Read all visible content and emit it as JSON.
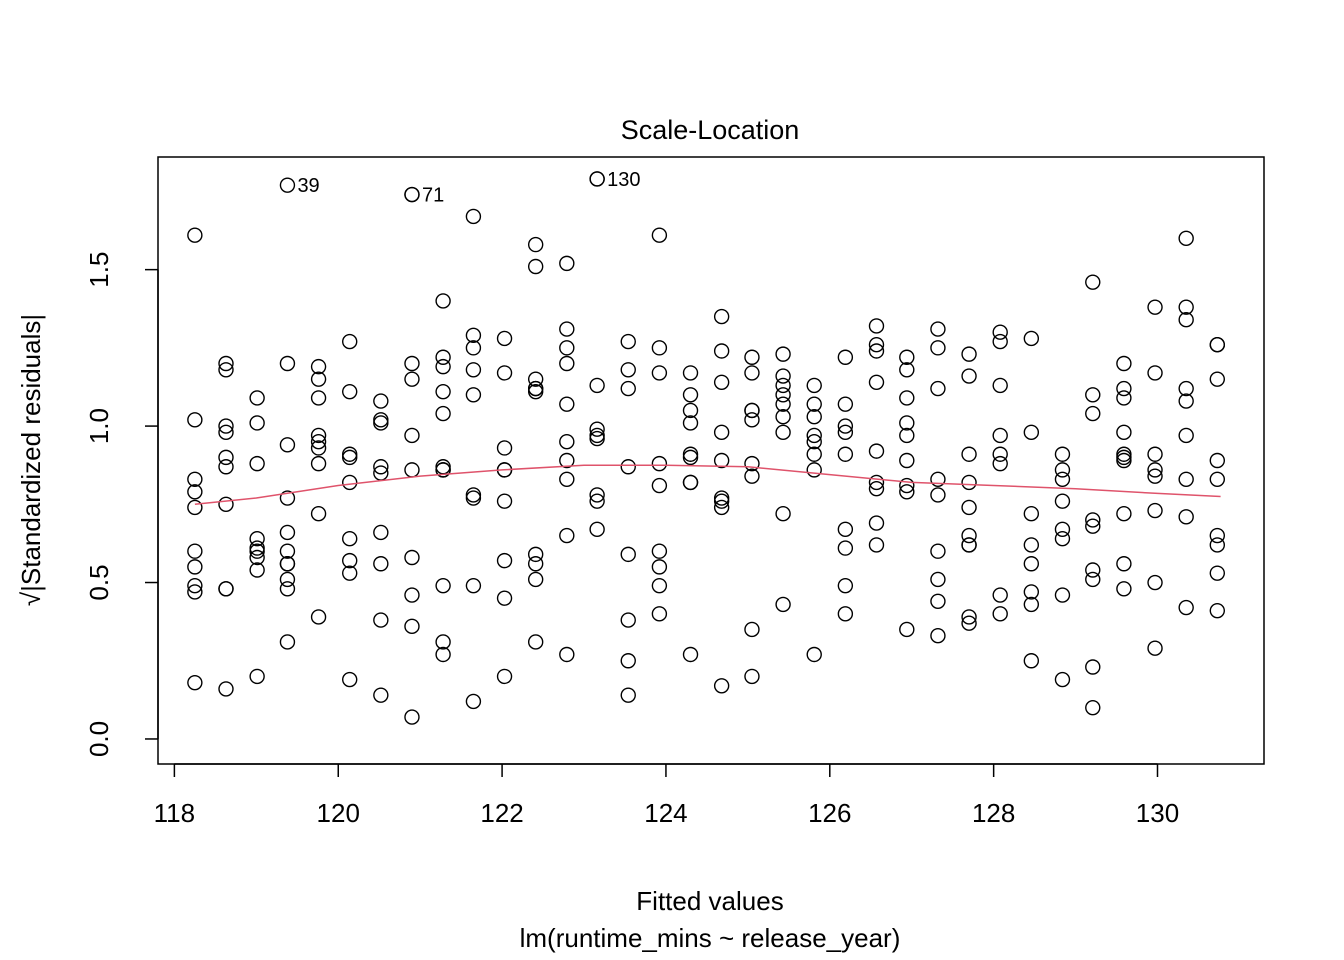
{
  "chart_data": {
    "type": "scatter",
    "title": "Scale-Location",
    "xlabel": "Fitted values",
    "sub_xlabel": "lm(runtime_mins ~ release_year)",
    "ylabel": "√|Standardized residuals|",
    "xlim": [
      117.8,
      131.3
    ],
    "ylim": [
      -0.08,
      1.86
    ],
    "xticks": [
      118,
      120,
      122,
      124,
      126,
      128,
      130
    ],
    "yticks": [
      0.0,
      0.5,
      1.0,
      1.5
    ],
    "xtick_labels": [
      "118",
      "120",
      "122",
      "124",
      "126",
      "128",
      "130"
    ],
    "ytick_labels": [
      "0.0",
      "0.5",
      "1.0",
      "1.5"
    ],
    "grid": false,
    "point_style": "open-circle",
    "smooth_color": "#DF536B",
    "annotations": [
      {
        "label": "39",
        "x": 119.38,
        "y": 1.77
      },
      {
        "label": "71",
        "x": 120.9,
        "y": 1.74
      },
      {
        "label": "130",
        "x": 123.16,
        "y": 1.79
      }
    ],
    "smooth": {
      "x": [
        118.25,
        119,
        120,
        121,
        122,
        123,
        124,
        125,
        126,
        127,
        128,
        129,
        130,
        130.77
      ],
      "y": [
        0.75,
        0.77,
        0.81,
        0.84,
        0.86,
        0.875,
        0.875,
        0.87,
        0.845,
        0.82,
        0.81,
        0.8,
        0.785,
        0.775
      ]
    },
    "points": {
      "x": [
        118.25,
        118.25,
        118.25,
        118.25,
        118.25,
        118.25,
        118.25,
        118.25,
        118.25,
        118.25,
        118.63,
        118.63,
        118.63,
        118.63,
        118.63,
        118.63,
        118.63,
        118.63,
        118.63,
        118.63,
        119.01,
        119.01,
        119.01,
        119.01,
        119.01,
        119.01,
        119.01,
        119.01,
        119.01,
        119.38,
        119.38,
        119.38,
        119.38,
        119.38,
        119.38,
        119.38,
        119.38,
        119.38,
        119.38,
        119.76,
        119.76,
        119.76,
        119.76,
        119.76,
        119.76,
        119.76,
        119.76,
        119.76,
        120.14,
        120.14,
        120.14,
        120.14,
        120.14,
        120.14,
        120.14,
        120.14,
        120.14,
        120.52,
        120.52,
        120.52,
        120.52,
        120.52,
        120.52,
        120.52,
        120.52,
        120.52,
        120.9,
        120.9,
        120.9,
        120.9,
        120.9,
        120.9,
        120.9,
        120.9,
        120.9,
        121.28,
        121.28,
        121.28,
        121.28,
        121.28,
        121.28,
        121.28,
        121.28,
        121.28,
        121.28,
        121.28,
        121.65,
        121.65,
        121.65,
        121.65,
        121.65,
        121.65,
        121.65,
        121.65,
        121.65,
        122.03,
        122.03,
        122.03,
        122.03,
        122.03,
        122.03,
        122.03,
        122.03,
        122.03,
        122.41,
        122.41,
        122.41,
        122.41,
        122.41,
        122.41,
        122.41,
        122.41,
        122.41,
        122.41,
        122.79,
        122.79,
        122.79,
        122.79,
        122.79,
        122.79,
        122.79,
        122.79,
        122.79,
        122.79,
        123.16,
        123.16,
        123.16,
        123.16,
        123.16,
        123.16,
        123.16,
        123.16,
        123.54,
        123.54,
        123.54,
        123.54,
        123.54,
        123.54,
        123.54,
        123.54,
        123.92,
        123.92,
        123.92,
        123.92,
        123.92,
        123.92,
        123.92,
        123.92,
        123.92,
        124.3,
        124.3,
        124.3,
        124.3,
        124.3,
        124.3,
        124.3,
        124.3,
        124.3,
        124.68,
        124.68,
        124.68,
        124.68,
        124.68,
        124.68,
        124.68,
        124.68,
        124.68,
        125.05,
        125.05,
        125.05,
        125.05,
        125.05,
        125.05,
        125.05,
        125.05,
        125.05,
        125.43,
        125.43,
        125.43,
        125.43,
        125.43,
        125.43,
        125.43,
        125.43,
        125.43,
        125.81,
        125.81,
        125.81,
        125.81,
        125.81,
        125.81,
        125.81,
        125.81,
        126.19,
        126.19,
        126.19,
        126.19,
        126.19,
        126.19,
        126.19,
        126.19,
        126.19,
        126.57,
        126.57,
        126.57,
        126.57,
        126.57,
        126.57,
        126.57,
        126.57,
        126.57,
        126.94,
        126.94,
        126.94,
        126.94,
        126.94,
        126.94,
        126.94,
        126.94,
        126.94,
        127.32,
        127.32,
        127.32,
        127.32,
        127.32,
        127.32,
        127.32,
        127.32,
        127.32,
        127.7,
        127.7,
        127.7,
        127.7,
        127.7,
        127.7,
        127.7,
        127.7,
        127.7,
        127.7,
        128.08,
        128.08,
        128.08,
        128.08,
        128.08,
        128.08,
        128.08,
        128.08,
        128.46,
        128.46,
        128.46,
        128.46,
        128.46,
        128.46,
        128.46,
        128.46,
        128.84,
        128.84,
        128.84,
        128.84,
        128.84,
        128.84,
        128.84,
        128.84,
        129.21,
        129.21,
        129.21,
        129.21,
        129.21,
        129.21,
        129.21,
        129.21,
        129.21,
        129.59,
        129.59,
        129.59,
        129.59,
        129.59,
        129.59,
        129.59,
        129.59,
        129.59,
        129.59,
        129.97,
        129.97,
        129.97,
        129.97,
        129.97,
        129.97,
        129.97,
        129.97,
        130.35,
        130.35,
        130.35,
        130.35,
        130.35,
        130.35,
        130.35,
        130.35,
        130.35,
        130.73,
        130.73,
        130.73,
        130.73,
        130.73,
        130.73,
        130.73,
        130.73,
        130.73,
        119.38,
        120.9,
        123.16
      ],
      "y": [
        1.61,
        1.02,
        0.83,
        0.79,
        0.74,
        0.6,
        0.55,
        0.49,
        0.47,
        0.18,
        1.2,
        1.18,
        1.0,
        0.98,
        0.9,
        0.87,
        0.75,
        0.48,
        0.16,
        0.48,
        1.09,
        1.01,
        0.88,
        0.64,
        0.61,
        0.58,
        0.54,
        0.2,
        0.6,
        1.2,
        0.94,
        0.77,
        0.66,
        0.6,
        0.56,
        0.51,
        0.48,
        0.31,
        0.56,
        1.19,
        1.15,
        1.09,
        0.97,
        0.95,
        0.93,
        0.88,
        0.72,
        0.39,
        1.27,
        1.11,
        0.91,
        0.9,
        0.82,
        0.64,
        0.57,
        0.53,
        0.19,
        1.08,
        1.02,
        1.01,
        0.87,
        0.85,
        0.66,
        0.56,
        0.38,
        0.14,
        1.2,
        1.15,
        0.97,
        0.86,
        0.58,
        0.46,
        0.36,
        0.07,
        1.74,
        1.4,
        1.22,
        1.19,
        1.11,
        1.04,
        0.87,
        0.86,
        0.49,
        0.31,
        0.27,
        0.86,
        1.67,
        1.29,
        1.25,
        1.18,
        1.1,
        0.78,
        0.77,
        0.49,
        0.12,
        1.28,
        1.17,
        0.93,
        0.86,
        0.76,
        0.57,
        0.45,
        0.2,
        0.86,
        1.58,
        1.51,
        1.15,
        1.12,
        1.11,
        0.59,
        0.56,
        0.51,
        0.31,
        1.12,
        1.52,
        1.31,
        1.25,
        1.2,
        1.07,
        0.95,
        0.89,
        0.83,
        0.65,
        0.27,
        1.79,
        1.13,
        0.99,
        0.97,
        0.96,
        0.78,
        0.76,
        0.67,
        1.27,
        1.18,
        1.12,
        0.87,
        0.59,
        0.38,
        0.25,
        0.14,
        1.61,
        1.25,
        1.17,
        0.88,
        0.81,
        0.6,
        0.55,
        0.49,
        0.4,
        1.17,
        1.1,
        1.05,
        1.01,
        0.91,
        0.9,
        0.82,
        0.82,
        0.27,
        1.35,
        1.24,
        1.14,
        0.98,
        0.89,
        0.77,
        0.76,
        0.74,
        0.17,
        1.22,
        1.17,
        1.05,
        1.02,
        0.88,
        0.84,
        0.35,
        0.2,
        1.05,
        1.23,
        1.16,
        1.13,
        1.1,
        1.07,
        1.03,
        0.98,
        0.72,
        0.43,
        1.13,
        1.07,
        1.03,
        0.97,
        0.95,
        0.91,
        0.86,
        0.27,
        1.22,
        1.07,
        1.0,
        0.98,
        0.91,
        0.67,
        0.61,
        0.49,
        0.4,
        1.32,
        1.26,
        1.24,
        1.14,
        0.92,
        0.82,
        0.8,
        0.69,
        0.62,
        1.22,
        1.18,
        1.09,
        1.01,
        0.97,
        0.89,
        0.81,
        0.79,
        0.35,
        1.31,
        1.25,
        1.12,
        0.83,
        0.78,
        0.6,
        0.51,
        0.44,
        0.33,
        1.23,
        1.16,
        0.91,
        0.82,
        0.74,
        0.65,
        0.62,
        0.39,
        0.37,
        0.62,
        1.3,
        1.27,
        1.13,
        0.97,
        0.91,
        0.88,
        0.46,
        0.4,
        1.28,
        0.98,
        0.72,
        0.62,
        0.56,
        0.47,
        0.43,
        0.25,
        0.91,
        0.86,
        0.83,
        0.76,
        0.67,
        0.64,
        0.46,
        0.19,
        1.46,
        1.1,
        1.04,
        0.7,
        0.68,
        0.54,
        0.51,
        0.23,
        0.1,
        1.2,
        1.12,
        1.09,
        0.98,
        0.91,
        0.89,
        0.72,
        0.56,
        0.48,
        0.9,
        1.17,
        0.91,
        0.86,
        0.84,
        0.73,
        0.5,
        0.29,
        1.38,
        1.6,
        1.38,
        1.34,
        1.12,
        1.08,
        0.97,
        0.83,
        0.71,
        0.42,
        1.26,
        1.26,
        1.15,
        0.89,
        0.83,
        0.65,
        0.62,
        0.53,
        0.41,
        1.77,
        1.74,
        1.79
      ]
    }
  }
}
